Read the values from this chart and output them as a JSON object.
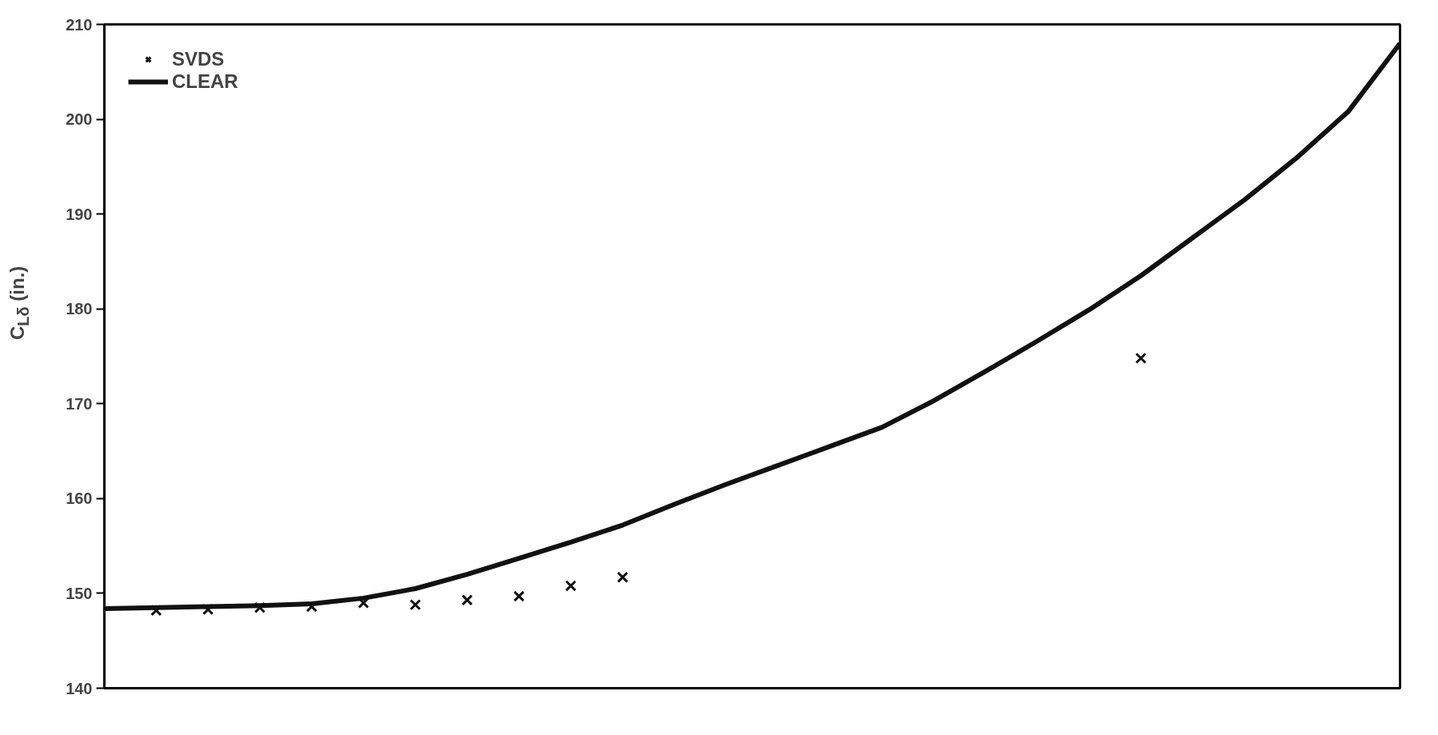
{
  "chart_data": {
    "type": "line",
    "ylabel": "C$_{Lδ}$ (in.)",
    "categories": [
      null,
      null,
      null,
      null,
      null,
      null,
      null,
      null,
      null,
      null,
      null,
      null,
      null,
      null,
      null,
      null,
      null,
      null,
      null,
      null,
      null,
      null,
      null,
      null,
      null,
      null
    ],
    "ylim": [
      140,
      210
    ],
    "yticks": [
      140,
      150,
      160,
      170,
      180,
      190,
      200,
      210
    ],
    "grid": false,
    "legend": "top left",
    "series": [
      {
        "name": "SVDS",
        "type": "scatter",
        "marker": "cross",
        "color": "#111111",
        "values": [
          null,
          148.2,
          148.3,
          148.5,
          148.6,
          149.0,
          148.8,
          149.3,
          149.7,
          150.8,
          151.7,
          null,
          null,
          null,
          null,
          null,
          null,
          null,
          null,
          null,
          174.8,
          null,
          null,
          null,
          null,
          null
        ]
      },
      {
        "name": "CLEAR",
        "color": "#111111",
        "values": [
          148.4,
          148.5,
          148.6,
          148.7,
          148.9,
          149.5,
          150.5,
          152,
          153.7,
          155.4,
          157.2,
          159.4,
          161.5,
          163.5,
          165.5,
          167.5,
          170.3,
          173.4,
          176.6,
          179.9,
          183.5,
          187.5,
          191.5,
          195.9,
          200.8,
          208
        ]
      }
    ]
  }
}
